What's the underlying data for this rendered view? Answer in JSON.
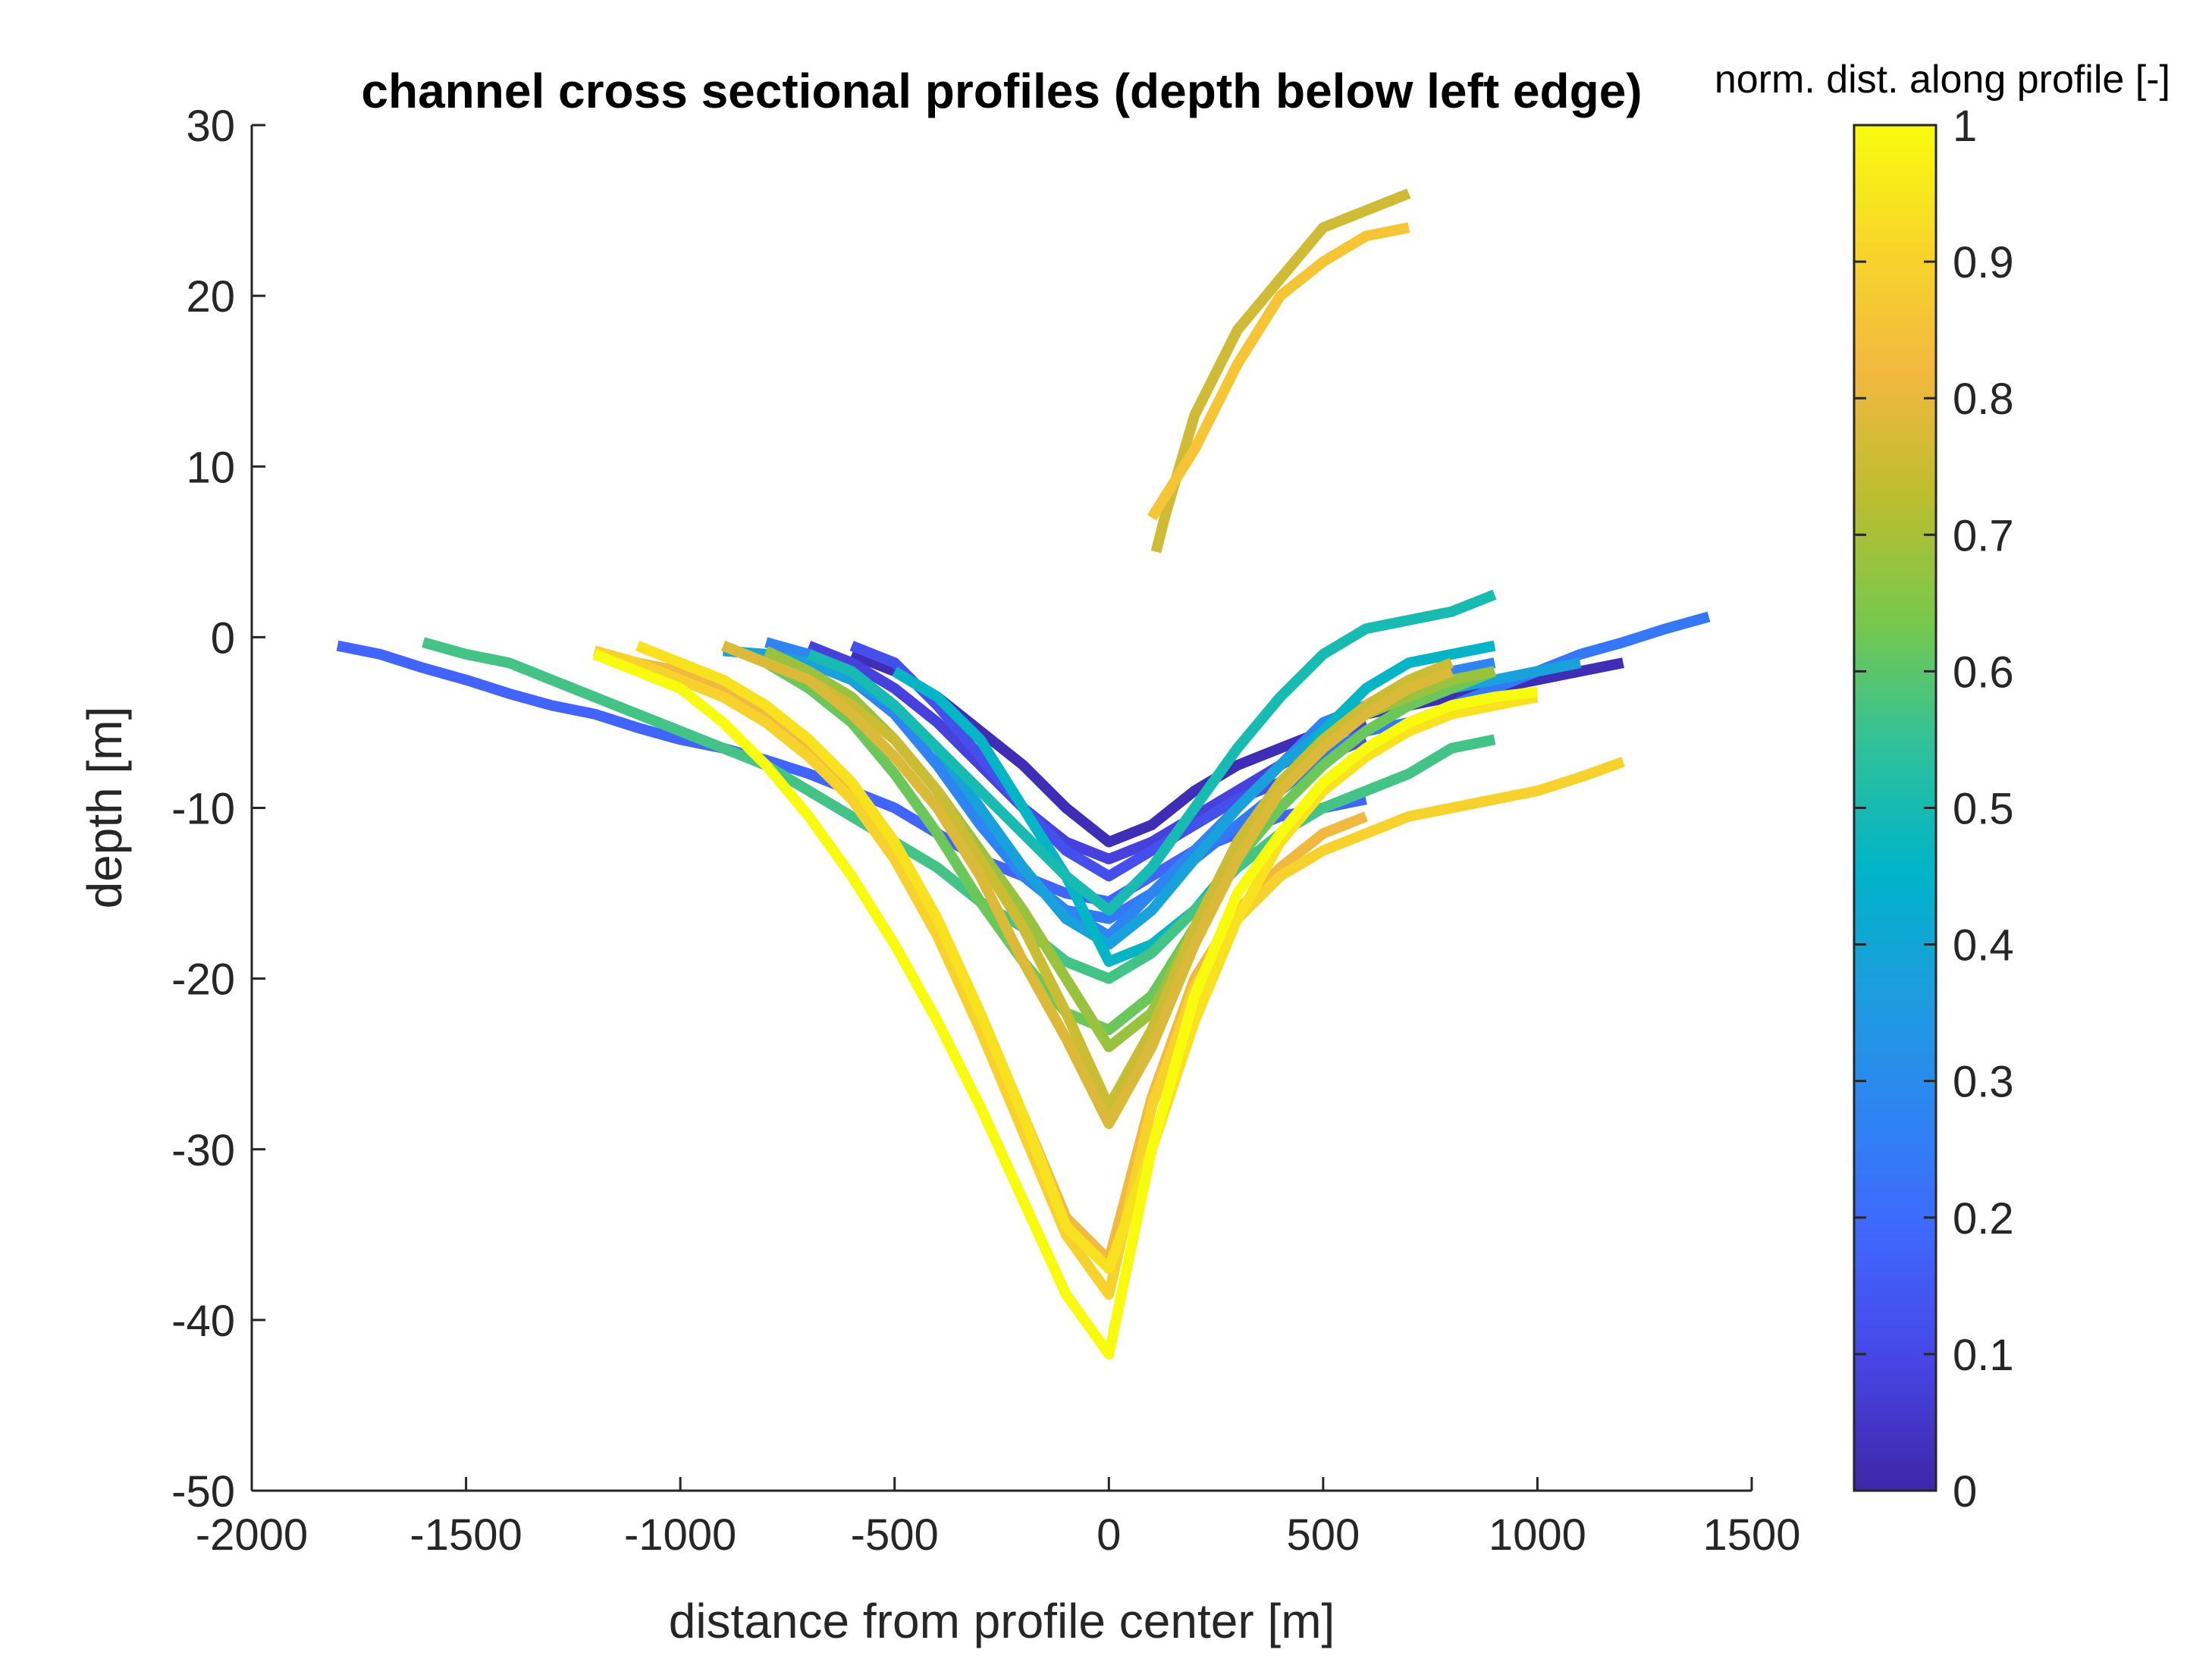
{
  "chart_data": {
    "type": "line",
    "title": "channel cross sectional profiles (depth below left edge)",
    "xlabel": "distance from profile center [m]",
    "ylabel": "depth [m]",
    "xlim": [
      -2000,
      1500
    ],
    "ylim": [
      -50,
      30
    ],
    "xticks": [
      -2000,
      -1500,
      -1000,
      -500,
      0,
      500,
      1000,
      1500
    ],
    "yticks": [
      -50,
      -40,
      -30,
      -20,
      -10,
      0,
      10,
      20,
      30
    ],
    "grid": false,
    "colorbar": {
      "title": "norm. dist. along profile [-]",
      "range": [
        0,
        1
      ],
      "ticks": [
        0,
        0.1,
        0.2,
        0.3,
        0.4,
        0.5,
        0.6,
        0.7,
        0.8,
        0.9,
        1
      ],
      "colormap": [
        "#3e26a8",
        "#4744e3",
        "#4065fd",
        "#2f83f3",
        "#1d9ddf",
        "#00b4c8",
        "#2fc19a",
        "#78c84c",
        "#bcbd2f",
        "#f2b840",
        "#f8d52a",
        "#f9fb0e"
      ]
    },
    "series": [
      {
        "c": 0.02,
        "x": [
          -600,
          -500,
          -400,
          -300,
          -200,
          -100,
          0,
          100,
          200,
          300,
          400,
          500,
          600,
          700,
          800,
          900,
          1000,
          1100,
          1200
        ],
        "y": [
          -1,
          -2,
          -3.5,
          -5.5,
          -7.5,
          -10,
          -12,
          -11,
          -9,
          -7.5,
          -6.5,
          -5.5,
          -4.5,
          -4,
          -3.5,
          -3,
          -2.5,
          -2,
          -1.5
        ]
      },
      {
        "c": 0.08,
        "x": [
          -700,
          -600,
          -500,
          -400,
          -300,
          -200,
          -100,
          0,
          100,
          200,
          300,
          400,
          500,
          600
        ],
        "y": [
          -0.5,
          -1.5,
          -3,
          -5,
          -7.5,
          -10,
          -12,
          -13,
          -12,
          -10.5,
          -9,
          -7.5,
          -6,
          -5
        ]
      },
      {
        "c": 0.12,
        "x": [
          -600,
          -500,
          -400,
          -300,
          -200,
          -100,
          0,
          100,
          200,
          300,
          400,
          500,
          600
        ],
        "y": [
          -0.5,
          -1.5,
          -4,
          -7,
          -10,
          -12.5,
          -14,
          -12.5,
          -11,
          -9.5,
          -8.5,
          -7,
          -6
        ]
      },
      {
        "c": 0.18,
        "x": [
          -1800,
          -1700,
          -1600,
          -1500,
          -1400,
          -1300,
          -1200,
          -1100,
          -1000,
          -900,
          -800,
          -700,
          -600,
          -500,
          -400,
          -300,
          -200,
          -100,
          0,
          100,
          200,
          300,
          400,
          500,
          600
        ],
        "y": [
          -0.5,
          -1,
          -1.8,
          -2.5,
          -3.3,
          -4,
          -4.5,
          -5.3,
          -6,
          -6.5,
          -7.2,
          -8,
          -9,
          -10,
          -11.5,
          -13,
          -14,
          -15,
          -15.5,
          -14,
          -12.5,
          -11.5,
          -10.5,
          -10,
          -9.5
        ]
      },
      {
        "c": 0.24,
        "x": [
          -100,
          0,
          100,
          200,
          300,
          400,
          500,
          600,
          700,
          800,
          900,
          1000,
          1100,
          1200,
          1300,
          1400
        ],
        "y": [
          -16,
          -16.5,
          -15,
          -13,
          -11,
          -9,
          -7,
          -5.5,
          -5,
          -4,
          -3,
          -2,
          -1,
          -0.3,
          0.5,
          1.2
        ]
      },
      {
        "c": 0.28,
        "x": [
          -800,
          -700,
          -600,
          -500,
          -400,
          -300,
          -200,
          -100,
          0,
          100,
          200,
          300,
          400,
          500,
          600,
          700,
          800,
          900
        ],
        "y": [
          -0.3,
          -1,
          -2.5,
          -4.5,
          -7.5,
          -11,
          -14,
          -16,
          -17.5,
          -15,
          -12.5,
          -10,
          -7.5,
          -5,
          -4,
          -3,
          -2,
          -1.5
        ]
      },
      {
        "c": 0.38,
        "x": [
          -900,
          -800,
          -700,
          -600,
          -500,
          -400,
          -300,
          -200,
          -100,
          0,
          100,
          200,
          300,
          400,
          500,
          600,
          700,
          800,
          900,
          1000,
          1100
        ],
        "y": [
          -0.8,
          -1,
          -1.5,
          -2.5,
          -4,
          -6.5,
          -10,
          -13.5,
          -16.5,
          -18,
          -16,
          -13,
          -10,
          -7.5,
          -5.5,
          -4.5,
          -3.5,
          -3,
          -2.5,
          -2,
          -1.5
        ]
      },
      {
        "c": 0.46,
        "x": [
          -500,
          -400,
          -300,
          -200,
          -100,
          0,
          100,
          200,
          300,
          400,
          500,
          600,
          700,
          800,
          900
        ],
        "y": [
          -2,
          -3.5,
          -6,
          -10,
          -14,
          -19,
          -18,
          -16,
          -13,
          -9,
          -5.5,
          -3,
          -1.5,
          -1,
          -0.5
        ]
      },
      {
        "c": 0.5,
        "x": [
          -700,
          -600,
          -500,
          -400,
          -300,
          -200,
          -100,
          0,
          100,
          200,
          300,
          400,
          500,
          600,
          700,
          800,
          900
        ],
        "y": [
          -1,
          -2,
          -4,
          -6.5,
          -9,
          -11.5,
          -14,
          -16,
          -13.5,
          -10,
          -6.5,
          -3.5,
          -1,
          0.5,
          1,
          1.5,
          2.5
        ]
      },
      {
        "c": 0.57,
        "x": [
          -1600,
          -1500,
          -1400,
          -1300,
          -1200,
          -1100,
          -1000,
          -900,
          -800,
          -700,
          -600,
          -500,
          -400,
          -300,
          -200,
          -100,
          0,
          100,
          200,
          300,
          400,
          500,
          600,
          700,
          800,
          900
        ],
        "y": [
          -0.3,
          -1,
          -1.5,
          -2.5,
          -3.5,
          -4.5,
          -5.5,
          -6.5,
          -7.5,
          -9,
          -10.5,
          -12,
          -13.5,
          -15.5,
          -17,
          -19,
          -20,
          -18.5,
          -16,
          -13.5,
          -11.5,
          -10,
          -9,
          -8,
          -6.5,
          -6
        ]
      },
      {
        "c": 0.62,
        "x": [
          -900,
          -800,
          -700,
          -600,
          -500,
          -400,
          -300,
          -200,
          -100,
          0,
          100,
          200,
          300,
          400,
          500,
          600,
          700,
          800,
          900
        ],
        "y": [
          -0.5,
          -1.5,
          -3,
          -5,
          -8,
          -11.5,
          -15.5,
          -19,
          -22,
          -23,
          -21,
          -17,
          -13,
          -10,
          -7.5,
          -5.5,
          -4,
          -3,
          -2
        ]
      },
      {
        "c": 0.68,
        "x": [
          -800,
          -700,
          -600,
          -500,
          -400,
          -300,
          -200,
          -100,
          0,
          100,
          200,
          300,
          400,
          500,
          600,
          700,
          800,
          900
        ],
        "y": [
          -0.8,
          -2,
          -3.5,
          -6,
          -9,
          -12.5,
          -16,
          -20,
          -24,
          -22,
          -17,
          -12.5,
          -9,
          -6.5,
          -4.5,
          -3.5,
          -2.5,
          -2
        ]
      },
      {
        "c": 0.75,
        "x": [
          -900,
          -800,
          -700,
          -600,
          -500,
          -400,
          -300,
          -200,
          -100,
          0,
          100,
          200,
          300,
          400,
          500,
          600,
          700,
          800
        ],
        "y": [
          -0.5,
          -1.5,
          -2.5,
          -4,
          -6,
          -9,
          -13,
          -17,
          -22,
          -27.5,
          -23,
          -17,
          -12,
          -8.5,
          -6,
          -4,
          -2.5,
          -1.5
        ]
      },
      {
        "c": 0.78,
        "x": [
          -900,
          -800,
          -700,
          -600,
          -500,
          -400,
          -300,
          -200,
          -100,
          0,
          100,
          200,
          300,
          400,
          500,
          600,
          700,
          800
        ],
        "y": [
          -0.5,
          -1.5,
          -2.5,
          -4.5,
          -7,
          -10,
          -14,
          -19,
          -23.5,
          -28.5,
          -24,
          -18,
          -13,
          -9,
          -6.5,
          -4.5,
          -3,
          -2
        ]
      },
      {
        "c": 0.76,
        "x": [
          110,
          130,
          200,
          300,
          400,
          500,
          600,
          700
        ],
        "y": [
          5,
          7,
          13,
          18,
          21,
          24,
          25,
          26
        ]
      },
      {
        "c": 0.86,
        "x": [
          100,
          200,
          300,
          400,
          500,
          600,
          700
        ],
        "y": [
          7,
          11,
          16,
          20,
          22,
          23.5,
          24
        ]
      },
      {
        "c": 0.82,
        "x": [
          -1200,
          -1100,
          -1000,
          -900,
          -800,
          -700,
          -600,
          -500,
          -400,
          -300,
          -200,
          -100,
          0,
          100,
          200,
          300,
          400,
          500,
          600
        ],
        "y": [
          -0.8,
          -1.5,
          -2,
          -3,
          -4.5,
          -6.5,
          -9,
          -12.5,
          -17,
          -22,
          -28,
          -34,
          -36.5,
          -27,
          -20,
          -16,
          -13.5,
          -11.5,
          -10.5
        ]
      },
      {
        "c": 0.9,
        "x": [
          -1200,
          -1100,
          -1000,
          -900,
          -800,
          -700,
          -600,
          -500,
          -400,
          -300,
          -200,
          -100,
          0,
          100,
          200,
          300,
          400,
          500,
          600,
          700,
          800,
          900,
          1000,
          1100,
          1200
        ],
        "y": [
          -0.8,
          -1.5,
          -2.5,
          -3.5,
          -5,
          -7,
          -9.5,
          -13,
          -17.5,
          -23,
          -29,
          -35,
          -38.5,
          -27.5,
          -20.5,
          -16.5,
          -14,
          -12.5,
          -11.5,
          -10.5,
          -10,
          -9.5,
          -9,
          -8.2,
          -7.3
        ]
      },
      {
        "c": 0.94,
        "x": [
          -1100,
          -1000,
          -900,
          -800,
          -700,
          -600,
          -500,
          -400,
          -300,
          -200,
          -100,
          0,
          100,
          200,
          300,
          400,
          500,
          600,
          700,
          800,
          900,
          1000
        ],
        "y": [
          -0.5,
          -1.5,
          -2.5,
          -4,
          -6,
          -8.5,
          -12,
          -16.5,
          -22,
          -28,
          -34.5,
          -37,
          -30,
          -22.5,
          -16.5,
          -12,
          -9,
          -7,
          -5.5,
          -4.5,
          -4,
          -3.5
        ]
      },
      {
        "c": 1.0,
        "x": [
          -1200,
          -1100,
          -1000,
          -900,
          -800,
          -700,
          -600,
          -500,
          -400,
          -300,
          -200,
          -100,
          0,
          100,
          200,
          300,
          400,
          500,
          600,
          700,
          800,
          900,
          1000
        ],
        "y": [
          -1,
          -2,
          -3,
          -5,
          -7.5,
          -10.5,
          -14,
          -18,
          -22.5,
          -27.5,
          -33,
          -38.5,
          -42,
          -30,
          -21,
          -15,
          -11.5,
          -8.5,
          -6.5,
          -5,
          -4,
          -3.5,
          -3.2
        ]
      }
    ]
  }
}
